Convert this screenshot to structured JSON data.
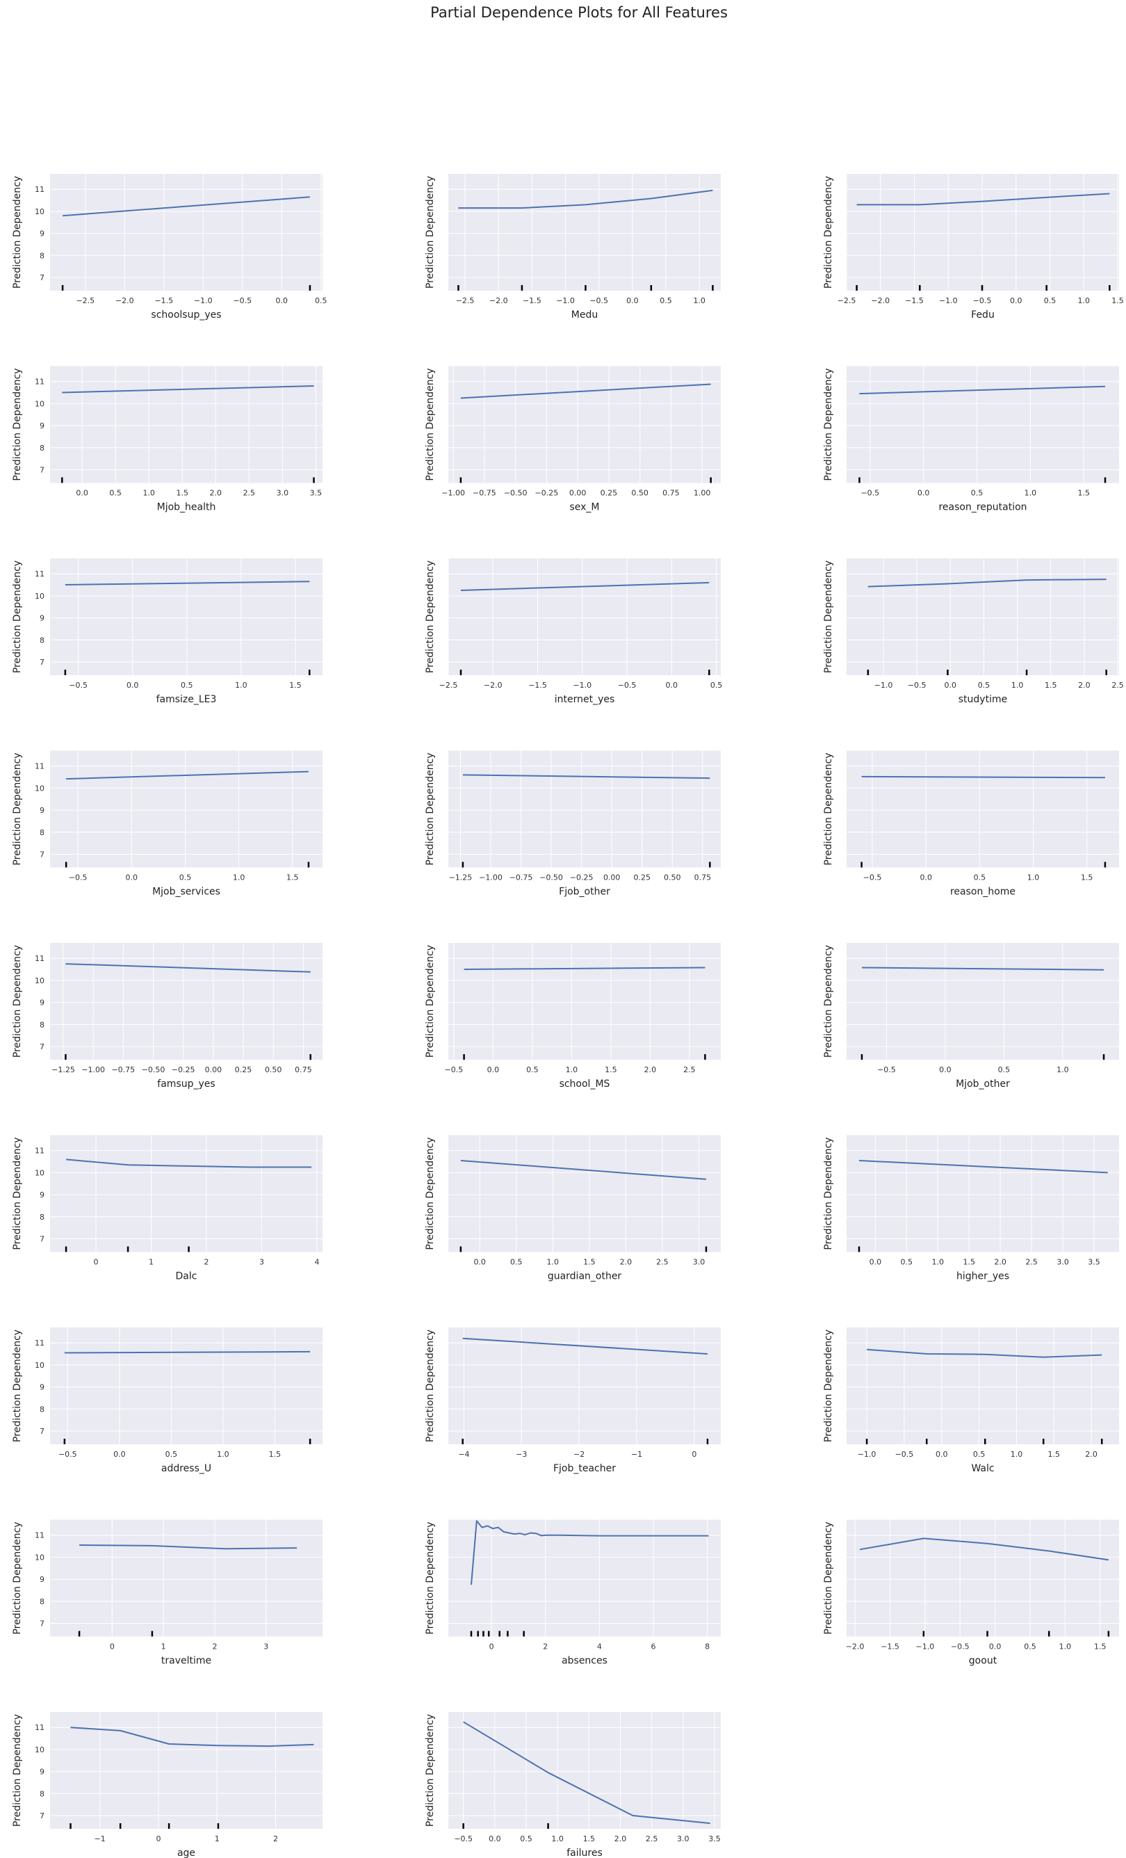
{
  "title": "Partial Dependence Plots for All Features",
  "colors": {
    "line": "#4c72b0",
    "panel": "#eaeaf2",
    "grid": "#ffffff",
    "rug": "#000000"
  },
  "chart_data": [
    {
      "type": "line",
      "title": "",
      "xlabel": "schoolsup_yes",
      "ylabel": "Prediction Dependency",
      "xlim": [
        -2.95,
        0.52
      ],
      "ylim": [
        6.4,
        11.7
      ],
      "xticks": [
        -2.5,
        -2.0,
        -1.5,
        -1.0,
        -0.5,
        0.0,
        0.5
      ],
      "yticks": [
        7,
        8,
        9,
        10,
        11
      ],
      "show_yticks": true,
      "x": [
        -2.79,
        0.36
      ],
      "y": [
        9.8,
        10.65
      ],
      "rug": [
        -2.79,
        0.36
      ],
      "grid": true
    },
    {
      "type": "line",
      "title": "",
      "xlabel": "Medu",
      "ylabel": "Prediction Dependency",
      "xlim": [
        -2.75,
        1.32
      ],
      "ylim": [
        6.4,
        11.7
      ],
      "xticks": [
        -2.5,
        -2.0,
        -1.5,
        -1.0,
        -0.5,
        0.0,
        0.5,
        1.0
      ],
      "yticks": [
        7,
        8,
        9,
        10,
        11
      ],
      "show_yticks": false,
      "x": [
        -2.6,
        -1.65,
        -0.7,
        0.28,
        1.2
      ],
      "y": [
        10.15,
        10.15,
        10.3,
        10.58,
        10.95
      ],
      "rug": [
        -2.6,
        -1.65,
        -0.7,
        0.28,
        1.2
      ],
      "grid": true
    },
    {
      "type": "line",
      "title": "",
      "xlabel": "Fedu",
      "ylabel": "Prediction Dependency",
      "xlim": [
        -2.5,
        1.52
      ],
      "ylim": [
        6.4,
        11.7
      ],
      "xticks": [
        -2.5,
        -2.0,
        -1.5,
        -1.0,
        -0.5,
        0.0,
        0.5,
        1.0,
        1.5
      ],
      "yticks": [
        7,
        8,
        9,
        10,
        11
      ],
      "show_yticks": false,
      "x": [
        -2.35,
        -1.42,
        -0.5,
        0.45,
        1.38
      ],
      "y": [
        10.3,
        10.3,
        10.45,
        10.63,
        10.8
      ],
      "rug": [
        -2.35,
        -1.42,
        -0.5,
        0.45,
        1.38
      ],
      "grid": true
    },
    {
      "type": "line",
      "title": "",
      "xlabel": "Mjob_health",
      "ylabel": "Prediction Dependency",
      "xlim": [
        -0.48,
        3.6
      ],
      "ylim": [
        6.4,
        11.7
      ],
      "xticks": [
        0.0,
        0.5,
        1.0,
        1.5,
        2.0,
        2.5,
        3.0,
        3.5
      ],
      "yticks": [
        7,
        8,
        9,
        10,
        11
      ],
      "show_yticks": true,
      "x": [
        -0.3,
        3.47
      ],
      "y": [
        10.5,
        10.8
      ],
      "rug": [
        -0.3,
        3.47
      ],
      "grid": true
    },
    {
      "type": "line",
      "title": "",
      "xlabel": "sex_M",
      "ylabel": "Prediction Dependency",
      "xlim": [
        -1.04,
        1.15
      ],
      "ylim": [
        6.4,
        11.7
      ],
      "xticks": [
        -1.0,
        -0.75,
        -0.5,
        -0.25,
        0.0,
        0.25,
        0.5,
        0.75,
        1.0
      ],
      "yticks": [
        7,
        8,
        9,
        10,
        11
      ],
      "show_yticks": false,
      "x": [
        -0.94,
        1.07
      ],
      "y": [
        10.25,
        10.88
      ],
      "rug": [
        -0.94,
        1.07
      ],
      "grid": true
    },
    {
      "type": "line",
      "title": "",
      "xlabel": "reason_reputation",
      "ylabel": "Prediction Dependency",
      "xlim": [
        -0.72,
        1.83
      ],
      "ylim": [
        6.4,
        11.7
      ],
      "xticks": [
        -0.5,
        0.0,
        0.5,
        1.0,
        1.5
      ],
      "yticks": [
        7,
        8,
        9,
        10,
        11
      ],
      "show_yticks": false,
      "x": [
        -0.6,
        1.7
      ],
      "y": [
        10.45,
        10.78
      ],
      "rug": [
        -0.6,
        1.7
      ],
      "grid": true
    },
    {
      "type": "line",
      "title": "",
      "xlabel": "famsize_LE3",
      "ylabel": "Prediction Dependency",
      "xlim": [
        -0.76,
        1.75
      ],
      "ylim": [
        6.4,
        11.7
      ],
      "xticks": [
        -0.5,
        0.0,
        0.5,
        1.0,
        1.5
      ],
      "yticks": [
        7,
        8,
        9,
        10,
        11
      ],
      "show_yticks": true,
      "x": [
        -0.62,
        1.63
      ],
      "y": [
        10.5,
        10.65
      ],
      "rug": [
        -0.62,
        1.63
      ],
      "grid": true
    },
    {
      "type": "line",
      "title": "",
      "xlabel": "internet_yes",
      "ylabel": "Prediction Dependency",
      "xlim": [
        -2.5,
        0.55
      ],
      "ylim": [
        6.4,
        11.7
      ],
      "xticks": [
        -2.5,
        -2.0,
        -1.5,
        -1.0,
        -0.5,
        0.0,
        0.5
      ],
      "yticks": [
        7,
        8,
        9,
        10,
        11
      ],
      "show_yticks": false,
      "x": [
        -2.36,
        0.42
      ],
      "y": [
        10.25,
        10.6
      ],
      "rug": [
        -2.36,
        0.42
      ],
      "grid": true
    },
    {
      "type": "line",
      "title": "",
      "xlabel": "studytime",
      "ylabel": "Prediction Dependency",
      "xlim": [
        -1.55,
        2.52
      ],
      "ylim": [
        6.4,
        11.7
      ],
      "xticks": [
        -1.0,
        -0.5,
        0.0,
        0.5,
        1.0,
        1.5,
        2.0,
        2.5
      ],
      "yticks": [
        7,
        8,
        9,
        10,
        11
      ],
      "show_yticks": false,
      "x": [
        -1.23,
        -0.04,
        1.14,
        2.33
      ],
      "y": [
        10.42,
        10.55,
        10.72,
        10.75
      ],
      "rug": [
        -1.23,
        -0.04,
        1.14,
        2.33
      ],
      "grid": true
    },
    {
      "type": "line",
      "title": "",
      "xlabel": "Mjob_services",
      "ylabel": "Prediction Dependency",
      "xlim": [
        -0.76,
        1.78
      ],
      "ylim": [
        6.4,
        11.7
      ],
      "xticks": [
        -0.5,
        0.0,
        0.5,
        1.0,
        1.5
      ],
      "yticks": [
        7,
        8,
        9,
        10,
        11
      ],
      "show_yticks": true,
      "x": [
        -0.61,
        1.65
      ],
      "y": [
        10.42,
        10.75
      ],
      "rug": [
        -0.61,
        1.65
      ],
      "grid": true
    },
    {
      "type": "line",
      "title": "",
      "xlabel": "Fjob_other",
      "ylabel": "Prediction Dependency",
      "xlim": [
        -1.35,
        0.9
      ],
      "ylim": [
        6.4,
        11.7
      ],
      "xticks": [
        -1.25,
        -1.0,
        -0.75,
        -0.5,
        -0.25,
        0.0,
        0.25,
        0.5,
        0.75
      ],
      "yticks": [
        7,
        8,
        9,
        10,
        11
      ],
      "show_yticks": false,
      "x": [
        -1.23,
        0.81
      ],
      "y": [
        10.6,
        10.45
      ],
      "rug": [
        -1.23,
        0.81
      ],
      "grid": true
    },
    {
      "type": "line",
      "title": "",
      "xlabel": "reason_home",
      "ylabel": "Prediction Dependency",
      "xlim": [
        -0.74,
        1.8
      ],
      "ylim": [
        6.4,
        11.7
      ],
      "xticks": [
        -0.5,
        0.0,
        0.5,
        1.0,
        1.5
      ],
      "yticks": [
        7,
        8,
        9,
        10,
        11
      ],
      "show_yticks": false,
      "x": [
        -0.6,
        1.67
      ],
      "y": [
        10.52,
        10.48
      ],
      "rug": [
        -0.6,
        1.67
      ],
      "grid": true
    },
    {
      "type": "line",
      "title": "",
      "xlabel": "famsup_yes",
      "ylabel": "Prediction Dependency",
      "xlim": [
        -1.36,
        0.91
      ],
      "ylim": [
        6.4,
        11.7
      ],
      "xticks": [
        -1.25,
        -1.0,
        -0.75,
        -0.5,
        -0.25,
        0.0,
        0.25,
        0.5,
        0.75
      ],
      "yticks": [
        7,
        8,
        9,
        10,
        11
      ],
      "show_yticks": true,
      "x": [
        -1.23,
        0.81
      ],
      "y": [
        10.75,
        10.38
      ],
      "rug": [
        -1.23,
        0.81
      ],
      "grid": true
    },
    {
      "type": "line",
      "title": "",
      "xlabel": "school_MS",
      "ylabel": "Prediction Dependency",
      "xlim": [
        -0.57,
        2.9
      ],
      "ylim": [
        6.4,
        11.7
      ],
      "xticks": [
        -0.5,
        0.0,
        0.5,
        1.0,
        1.5,
        2.0,
        2.5
      ],
      "yticks": [
        7,
        8,
        9,
        10,
        11
      ],
      "show_yticks": false,
      "x": [
        -0.37,
        2.7
      ],
      "y": [
        10.5,
        10.58
      ],
      "rug": [
        -0.37,
        2.7
      ],
      "grid": true
    },
    {
      "type": "line",
      "title": "",
      "xlabel": "Mjob_other",
      "ylabel": "Prediction Dependency",
      "xlim": [
        -0.84,
        1.48
      ],
      "ylim": [
        6.4,
        11.7
      ],
      "xticks": [
        -0.5,
        0.0,
        0.5,
        1.0
      ],
      "yticks": [
        7,
        8,
        9,
        10,
        11
      ],
      "show_yticks": false,
      "x": [
        -0.71,
        1.35
      ],
      "y": [
        10.58,
        10.48
      ],
      "rug": [
        -0.71,
        1.35
      ],
      "grid": true
    },
    {
      "type": "line",
      "title": "",
      "xlabel": "Dalc",
      "ylabel": "Prediction Dependency",
      "xlim": [
        -0.83,
        4.1
      ],
      "ylim": [
        6.4,
        11.7
      ],
      "xticks": [
        0,
        1,
        2,
        3,
        4
      ],
      "yticks": [
        7,
        8,
        9,
        10,
        11
      ],
      "show_yticks": true,
      "x": [
        -0.54,
        0.58,
        1.68,
        2.8,
        3.9
      ],
      "y": [
        10.6,
        10.35,
        10.3,
        10.25,
        10.25
      ],
      "rug": [
        -0.54,
        0.58,
        1.68
      ],
      "grid": true
    },
    {
      "type": "line",
      "title": "",
      "xlabel": "guardian_other",
      "ylabel": "Prediction Dependency",
      "xlim": [
        -0.43,
        3.3
      ],
      "ylim": [
        6.4,
        11.7
      ],
      "xticks": [
        0.0,
        0.5,
        1.0,
        1.5,
        2.0,
        2.5,
        3.0
      ],
      "yticks": [
        7,
        8,
        9,
        10,
        11
      ],
      "show_yticks": false,
      "x": [
        -0.26,
        3.1
      ],
      "y": [
        10.55,
        9.7
      ],
      "rug": [
        -0.26,
        3.1
      ],
      "grid": true
    },
    {
      "type": "line",
      "title": "",
      "xlabel": "higher_yes",
      "ylabel": "Prediction Dependency",
      "xlim": [
        -0.46,
        3.9
      ],
      "ylim": [
        6.4,
        11.7
      ],
      "xticks": [
        0.0,
        0.5,
        1.0,
        1.5,
        2.0,
        2.5,
        3.0,
        3.5
      ],
      "yticks": [
        7,
        8,
        9,
        10,
        11
      ],
      "show_yticks": false,
      "x": [
        -0.26,
        3.72
      ],
      "y": [
        10.55,
        10.0
      ],
      "rug": [
        -0.26
      ],
      "grid": true
    },
    {
      "type": "line",
      "title": "",
      "xlabel": "address_U",
      "ylabel": "Prediction Dependency",
      "xlim": [
        -0.67,
        1.96
      ],
      "ylim": [
        6.4,
        11.7
      ],
      "xticks": [
        -0.5,
        0.0,
        0.5,
        1.0,
        1.5
      ],
      "yticks": [
        7,
        8,
        9,
        10,
        11
      ],
      "show_yticks": true,
      "x": [
        -0.53,
        1.84
      ],
      "y": [
        10.55,
        10.6
      ],
      "rug": [
        -0.53,
        1.84
      ],
      "grid": true
    },
    {
      "type": "line",
      "title": "",
      "xlabel": "Fjob_teacher",
      "ylabel": "Prediction Dependency",
      "xlim": [
        -4.27,
        0.46
      ],
      "ylim": [
        6.4,
        11.7
      ],
      "xticks": [
        -4,
        -3,
        -2,
        -1,
        0
      ],
      "yticks": [
        7,
        8,
        9,
        10,
        11
      ],
      "show_yticks": false,
      "x": [
        -4.02,
        0.23
      ],
      "y": [
        11.2,
        10.5
      ],
      "rug": [
        -4.02,
        0.23
      ],
      "grid": true
    },
    {
      "type": "line",
      "title": "",
      "xlabel": "Walc",
      "ylabel": "Prediction Dependency",
      "xlim": [
        -1.27,
        2.37
      ],
      "ylim": [
        6.4,
        11.7
      ],
      "xticks": [
        -1.0,
        -0.5,
        0.0,
        0.5,
        1.0,
        1.5,
        2.0
      ],
      "yticks": [
        7,
        8,
        9,
        10,
        11
      ],
      "show_yticks": false,
      "x": [
        -1.0,
        -0.2,
        0.58,
        1.36,
        2.14
      ],
      "y": [
        10.7,
        10.5,
        10.48,
        10.35,
        10.45
      ],
      "rug": [
        -1.0,
        -0.2,
        0.58,
        1.36,
        2.14
      ],
      "grid": true
    },
    {
      "type": "line",
      "title": "",
      "xlabel": "traveltime",
      "ylabel": "Prediction Dependency",
      "xlim": [
        -1.21,
        4.1
      ],
      "ylim": [
        6.4,
        11.7
      ],
      "xticks": [
        0,
        1,
        2,
        3
      ],
      "yticks": [
        7,
        8,
        9,
        10,
        11
      ],
      "show_yticks": true,
      "x": [
        -0.64,
        0.78,
        2.2,
        3.6
      ],
      "y": [
        10.55,
        10.52,
        10.38,
        10.42
      ],
      "rug": [
        -0.64,
        0.78
      ],
      "grid": true
    },
    {
      "type": "line",
      "title": "",
      "xlabel": "absences",
      "ylabel": "Prediction Dependency",
      "xlim": [
        -1.6,
        8.5
      ],
      "ylim": [
        6.4,
        11.7
      ],
      "xticks": [
        0,
        2,
        4,
        6,
        8
      ],
      "yticks": [
        7,
        8,
        9,
        10,
        11
      ],
      "show_yticks": false,
      "x": [
        -0.75,
        -0.55,
        -0.35,
        -0.15,
        0.05,
        0.25,
        0.45,
        0.65,
        0.85,
        1.05,
        1.25,
        1.45,
        1.65,
        1.85,
        2.05,
        2.5,
        4,
        6,
        8.05
      ],
      "y": [
        8.75,
        11.65,
        11.35,
        11.42,
        11.3,
        11.35,
        11.15,
        11.1,
        11.05,
        11.08,
        11.02,
        11.1,
        11.08,
        10.98,
        11.0,
        11.0,
        10.97,
        10.97,
        10.97
      ],
      "rug": [
        -0.75,
        -0.5,
        -0.3,
        -0.1,
        0.3,
        0.6,
        1.2
      ],
      "grid": true
    },
    {
      "type": "line",
      "title": "",
      "xlabel": "goout",
      "ylabel": "Prediction Dependency",
      "xlim": [
        -2.12,
        1.77
      ],
      "ylim": [
        6.4,
        11.7
      ],
      "xticks": [
        -2.0,
        -1.5,
        -1.0,
        -0.5,
        0.0,
        0.5,
        1.0,
        1.5
      ],
      "yticks": [
        7,
        8,
        9,
        10,
        11
      ],
      "show_yticks": false,
      "x": [
        -1.93,
        -1.02,
        -0.11,
        0.77,
        1.62
      ],
      "y": [
        10.35,
        10.85,
        10.62,
        10.28,
        9.88
      ],
      "rug": [
        -1.02,
        -0.11,
        0.77,
        1.62
      ],
      "grid": true
    },
    {
      "type": "line",
      "title": "",
      "xlabel": "age",
      "ylabel": "Prediction Dependency",
      "xlim": [
        -1.85,
        2.8
      ],
      "ylim": [
        6.4,
        11.7
      ],
      "xticks": [
        -1,
        0,
        1,
        2
      ],
      "yticks": [
        7,
        8,
        9,
        10,
        11
      ],
      "show_yticks": true,
      "x": [
        -1.5,
        -0.65,
        0.18,
        1.02,
        1.87,
        2.65
      ],
      "y": [
        11.0,
        10.85,
        10.25,
        10.18,
        10.15,
        10.22
      ],
      "rug": [
        -1.5,
        -0.65,
        0.18,
        1.02
      ],
      "grid": true
    },
    {
      "type": "line",
      "title": "",
      "xlabel": "failures",
      "ylabel": "Prediction Dependency",
      "xlim": [
        -0.74,
        3.6
      ],
      "ylim": [
        6.4,
        11.7
      ],
      "xticks": [
        -0.5,
        0.0,
        0.5,
        1.0,
        1.5,
        2.0,
        2.5,
        3.0,
        3.5
      ],
      "yticks": [
        7,
        8,
        9,
        10,
        11
      ],
      "show_yticks": false,
      "x": [
        -0.5,
        0.85,
        2.2,
        3.43
      ],
      "y": [
        11.25,
        8.95,
        7.0,
        6.65
      ],
      "rug": [
        -0.5,
        0.85
      ],
      "grid": true
    }
  ]
}
